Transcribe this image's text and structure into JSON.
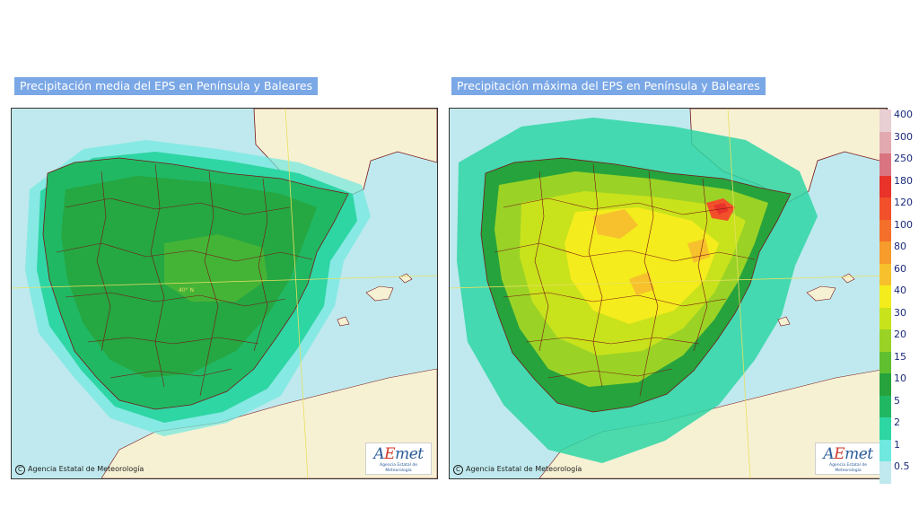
{
  "panels": {
    "left": {
      "title": "Precipitación media del EPS en Península y Baleares",
      "copyright": "Agencia Estatal de Meteorología",
      "latitude_label": "40° N"
    },
    "right": {
      "title": "Precipitación máxima del EPS en Península y Baleares",
      "copyright": "Agencia Estatal de Meteorología"
    }
  },
  "logo": {
    "mark_a": "A",
    "mark_e": "E",
    "mark_rest": "met",
    "subtitle": "Agencia Estatal de Meteorología"
  },
  "colors": {
    "land": "#f7f1d4",
    "sea": "#bfe9ee",
    "border": "#7a1414",
    "grid": "#e8e060"
  },
  "legend": [
    {
      "label": "400",
      "color": "#e8cfd3"
    },
    {
      "label": "300",
      "color": "#e3a9b0"
    },
    {
      "label": "250",
      "color": "#d97480"
    },
    {
      "label": "180",
      "color": "#e8322a"
    },
    {
      "label": "120",
      "color": "#f2502a"
    },
    {
      "label": "100",
      "color": "#f46f2a"
    },
    {
      "label": "80",
      "color": "#f69b2c"
    },
    {
      "label": "60",
      "color": "#f7c12d"
    },
    {
      "label": "40",
      "color": "#f4ec1c"
    },
    {
      "label": "30",
      "color": "#c8e21c"
    },
    {
      "label": "20",
      "color": "#9ad326"
    },
    {
      "label": "15",
      "color": "#5fbf2f"
    },
    {
      "label": "10",
      "color": "#26a33c"
    },
    {
      "label": "5",
      "color": "#21b863"
    },
    {
      "label": "2",
      "color": "#2ed6a4"
    },
    {
      "label": "1",
      "color": "#6fe8e0"
    },
    {
      "label": "0.5",
      "color": "#bfe9ee"
    }
  ]
}
